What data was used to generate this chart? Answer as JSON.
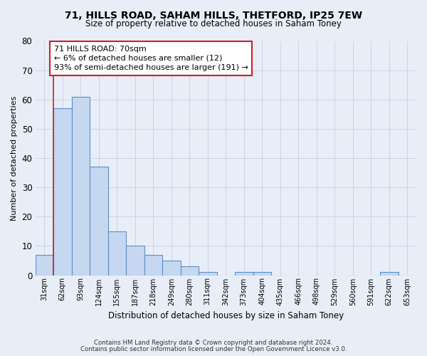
{
  "title1": "71, HILLS ROAD, SAHAM HILLS, THETFORD, IP25 7EW",
  "title2": "Size of property relative to detached houses in Saham Toney",
  "xlabel": "Distribution of detached houses by size in Saham Toney",
  "ylabel": "Number of detached properties",
  "categories": [
    "31sqm",
    "62sqm",
    "93sqm",
    "124sqm",
    "155sqm",
    "187sqm",
    "218sqm",
    "249sqm",
    "280sqm",
    "311sqm",
    "342sqm",
    "373sqm",
    "404sqm",
    "435sqm",
    "466sqm",
    "498sqm",
    "529sqm",
    "560sqm",
    "591sqm",
    "622sqm",
    "653sqm"
  ],
  "values": [
    7,
    57,
    61,
    37,
    15,
    10,
    7,
    5,
    3,
    1,
    0,
    1,
    1,
    0,
    0,
    0,
    0,
    0,
    0,
    1,
    0
  ],
  "bar_color": "#c5d8f0",
  "bar_edge_color": "#5b8fc9",
  "vline_color": "#cc2222",
  "vline_pos": 0.5,
  "annotation_line1": "71 HILLS ROAD: 70sqm",
  "annotation_line2": "← 6% of detached houses are smaller (12)",
  "annotation_line3": "93% of semi-detached houses are larger (191) →",
  "annotation_box_facecolor": "white",
  "annotation_box_edgecolor": "#cc2222",
  "ylim": [
    0,
    80
  ],
  "yticks": [
    0,
    10,
    20,
    30,
    40,
    50,
    60,
    70,
    80
  ],
  "grid_color": "#c8cfe0",
  "bg_color": "#e8eef8",
  "footer1": "Contains HM Land Registry data © Crown copyright and database right 2024.",
  "footer2": "Contains public sector information licensed under the Open Government Licence v3.0."
}
